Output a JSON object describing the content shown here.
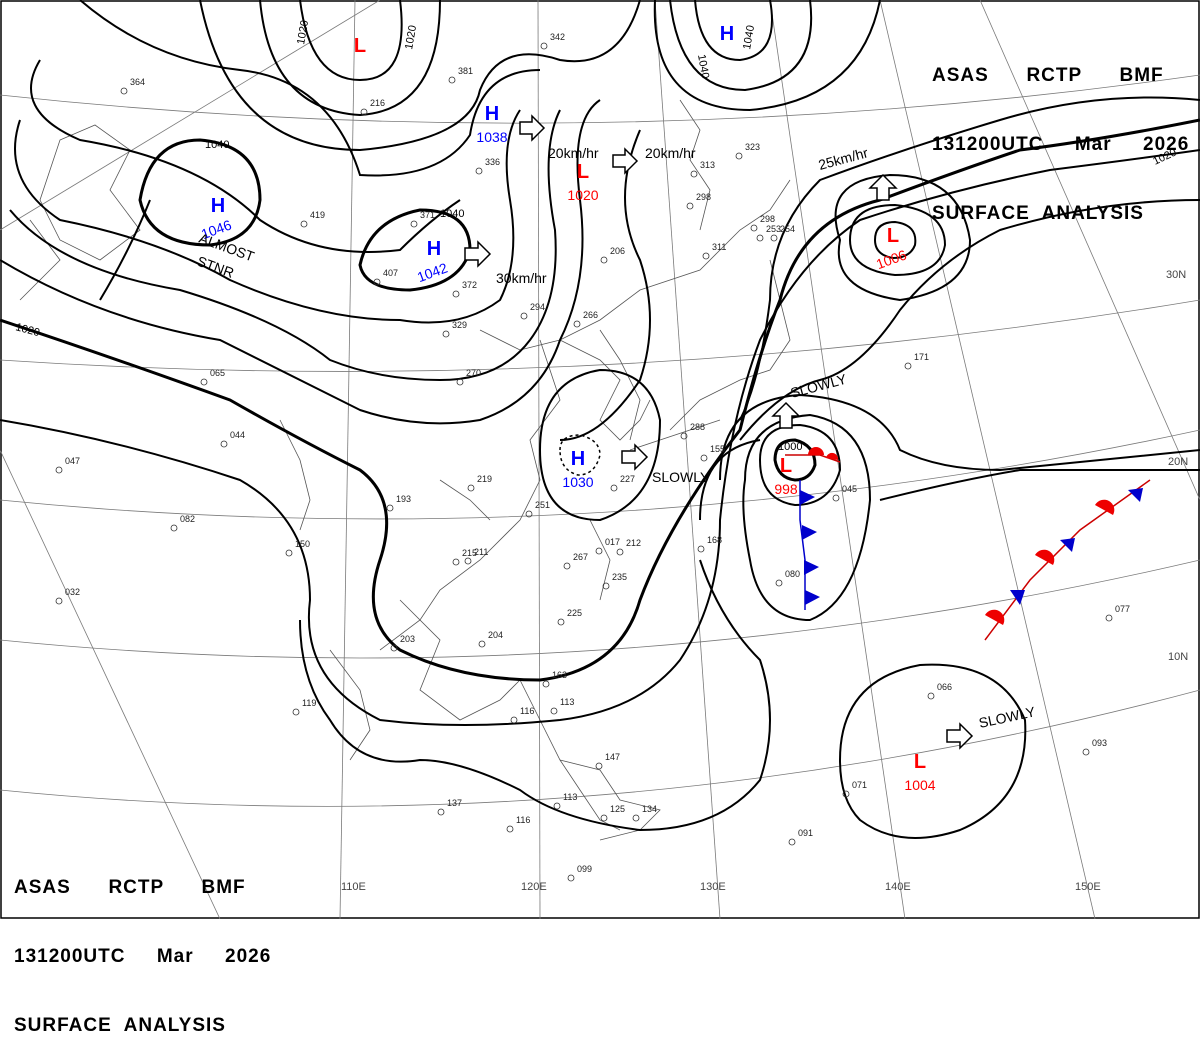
{
  "header": {
    "line1": "ASAS      RCTP      BMF",
    "line2": "131200UTC     Mar     2026",
    "line3": "SURFACE  ANALYSIS"
  },
  "footer": {
    "line1": "ASAS      RCTP      BMF",
    "line2": "131200UTC     Mar     2026",
    "line3": "SURFACE  ANALYSIS"
  },
  "colors": {
    "high": "#0000ff",
    "low": "#ff0000",
    "isobar": "#000000",
    "grid": "#777777"
  },
  "longitudes": [
    "110E",
    "120E",
    "130E",
    "140E",
    "150E"
  ],
  "latitudes": [
    "30N",
    "20N",
    "10N"
  ],
  "isobar_labels": [
    "1020",
    "1020",
    "1040",
    "1040",
    "1040",
    "1040",
    "1020",
    "1020",
    "1000"
  ],
  "centers": [
    {
      "type": "L",
      "value": ""
    },
    {
      "type": "H",
      "value": ""
    },
    {
      "type": "H",
      "value": "1038"
    },
    {
      "type": "H",
      "value": "1046"
    },
    {
      "type": "H",
      "value": "1042"
    },
    {
      "type": "L",
      "value": "1020"
    },
    {
      "type": "L",
      "value": "1006"
    },
    {
      "type": "H",
      "value": "1030"
    },
    {
      "type": "L",
      "value": "998"
    },
    {
      "type": "L",
      "value": "1004"
    }
  ],
  "motion_labels": [
    "20km/hr",
    "20km/hr",
    "30km/hr",
    "25km/hr",
    "SLOWLY",
    "SLOWLY",
    "SLOWLY",
    "ALMOST",
    "STNR"
  ],
  "station_texts": [
    "342",
    "364",
    "216",
    "381",
    "336",
    "419",
    "371",
    "407",
    "372",
    "329",
    "266",
    "294",
    "298",
    "313",
    "323",
    "311",
    "206",
    "298",
    "253",
    "065",
    "044",
    "047",
    "082",
    "032",
    "017",
    "211",
    "219",
    "193",
    "150",
    "215",
    "267",
    "235",
    "225",
    "204",
    "203",
    "163",
    "119",
    "147",
    "137",
    "113",
    "116",
    "099",
    "125",
    "134",
    "091",
    "071",
    "093",
    "077",
    "171",
    "045",
    "080",
    "066",
    "270",
    "254",
    "227",
    "288",
    "251",
    "212",
    "168",
    "155",
    "113",
    "116"
  ]
}
